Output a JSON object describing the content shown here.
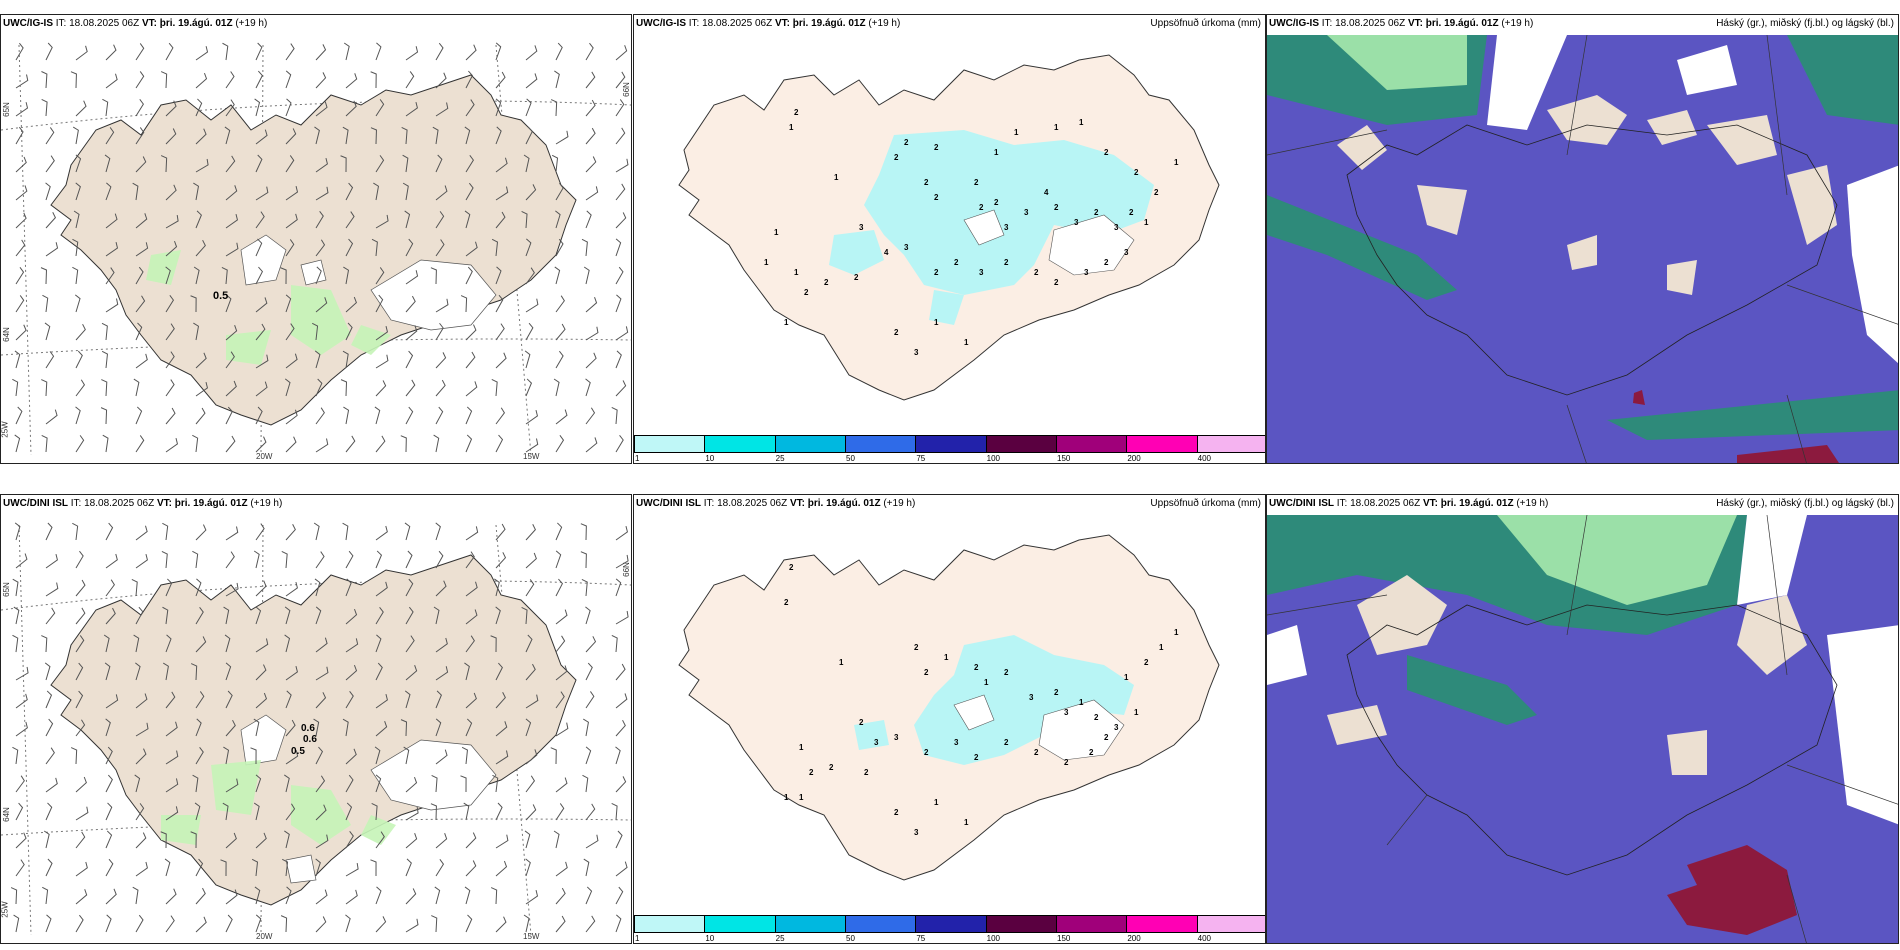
{
  "rows": [
    {
      "model": "UWC/IG-IS",
      "it_label": "IT:",
      "it_value": "18.08.2025 06Z",
      "vt_label": "VT:",
      "vt_value": "þri. 19.ágú. 01Z",
      "lead": "(+19 h)",
      "wind_values": [
        "0.5"
      ],
      "precip_title": "Uppsöfnuð úrkoma (mm)",
      "cloud_title": "Háský (gr.), miðský (fj.bl.) og lágský (bl.)"
    },
    {
      "model": "UWC/DINI ISL",
      "it_label": "IT:",
      "it_value": "18.08.2025 06Z",
      "vt_label": "VT:",
      "vt_value": "þri. 19.ágú. 01Z",
      "lead": "(+19 h)",
      "wind_values": [
        "0.6",
        "0.6",
        "0.5"
      ],
      "precip_title": "Uppsöfnuð úrkoma (mm)",
      "cloud_title": "Háský (gr.), miðský (fj.bl.) og lágský (bl.)"
    }
  ],
  "axis": {
    "lon_labels": [
      "20W",
      "15W"
    ],
    "lat_labels": [
      "65N",
      "64N",
      "66N"
    ],
    "lon_left": "25W"
  },
  "colorbar": {
    "labels": [
      "1",
      "10",
      "25",
      "50",
      "75",
      "100",
      "150",
      "200",
      "400"
    ],
    "colors": [
      "#bff7f7",
      "#00e5e5",
      "#00b8e0",
      "#2f6be8",
      "#2222aa",
      "#5a0040",
      "#a0007a",
      "#ff00b4",
      "#f5b3f0"
    ]
  },
  "colors": {
    "land": "#ece0d2",
    "land_precip": "#fbeee4",
    "precip_light": "#b8f5f5",
    "wind_green": "#c6f5b8",
    "cloud_low": "#5b55c2",
    "cloud_mid": "#2e8a7a",
    "cloud_high": "#9be0a8",
    "cloud_red": "#8c1a3e"
  }
}
